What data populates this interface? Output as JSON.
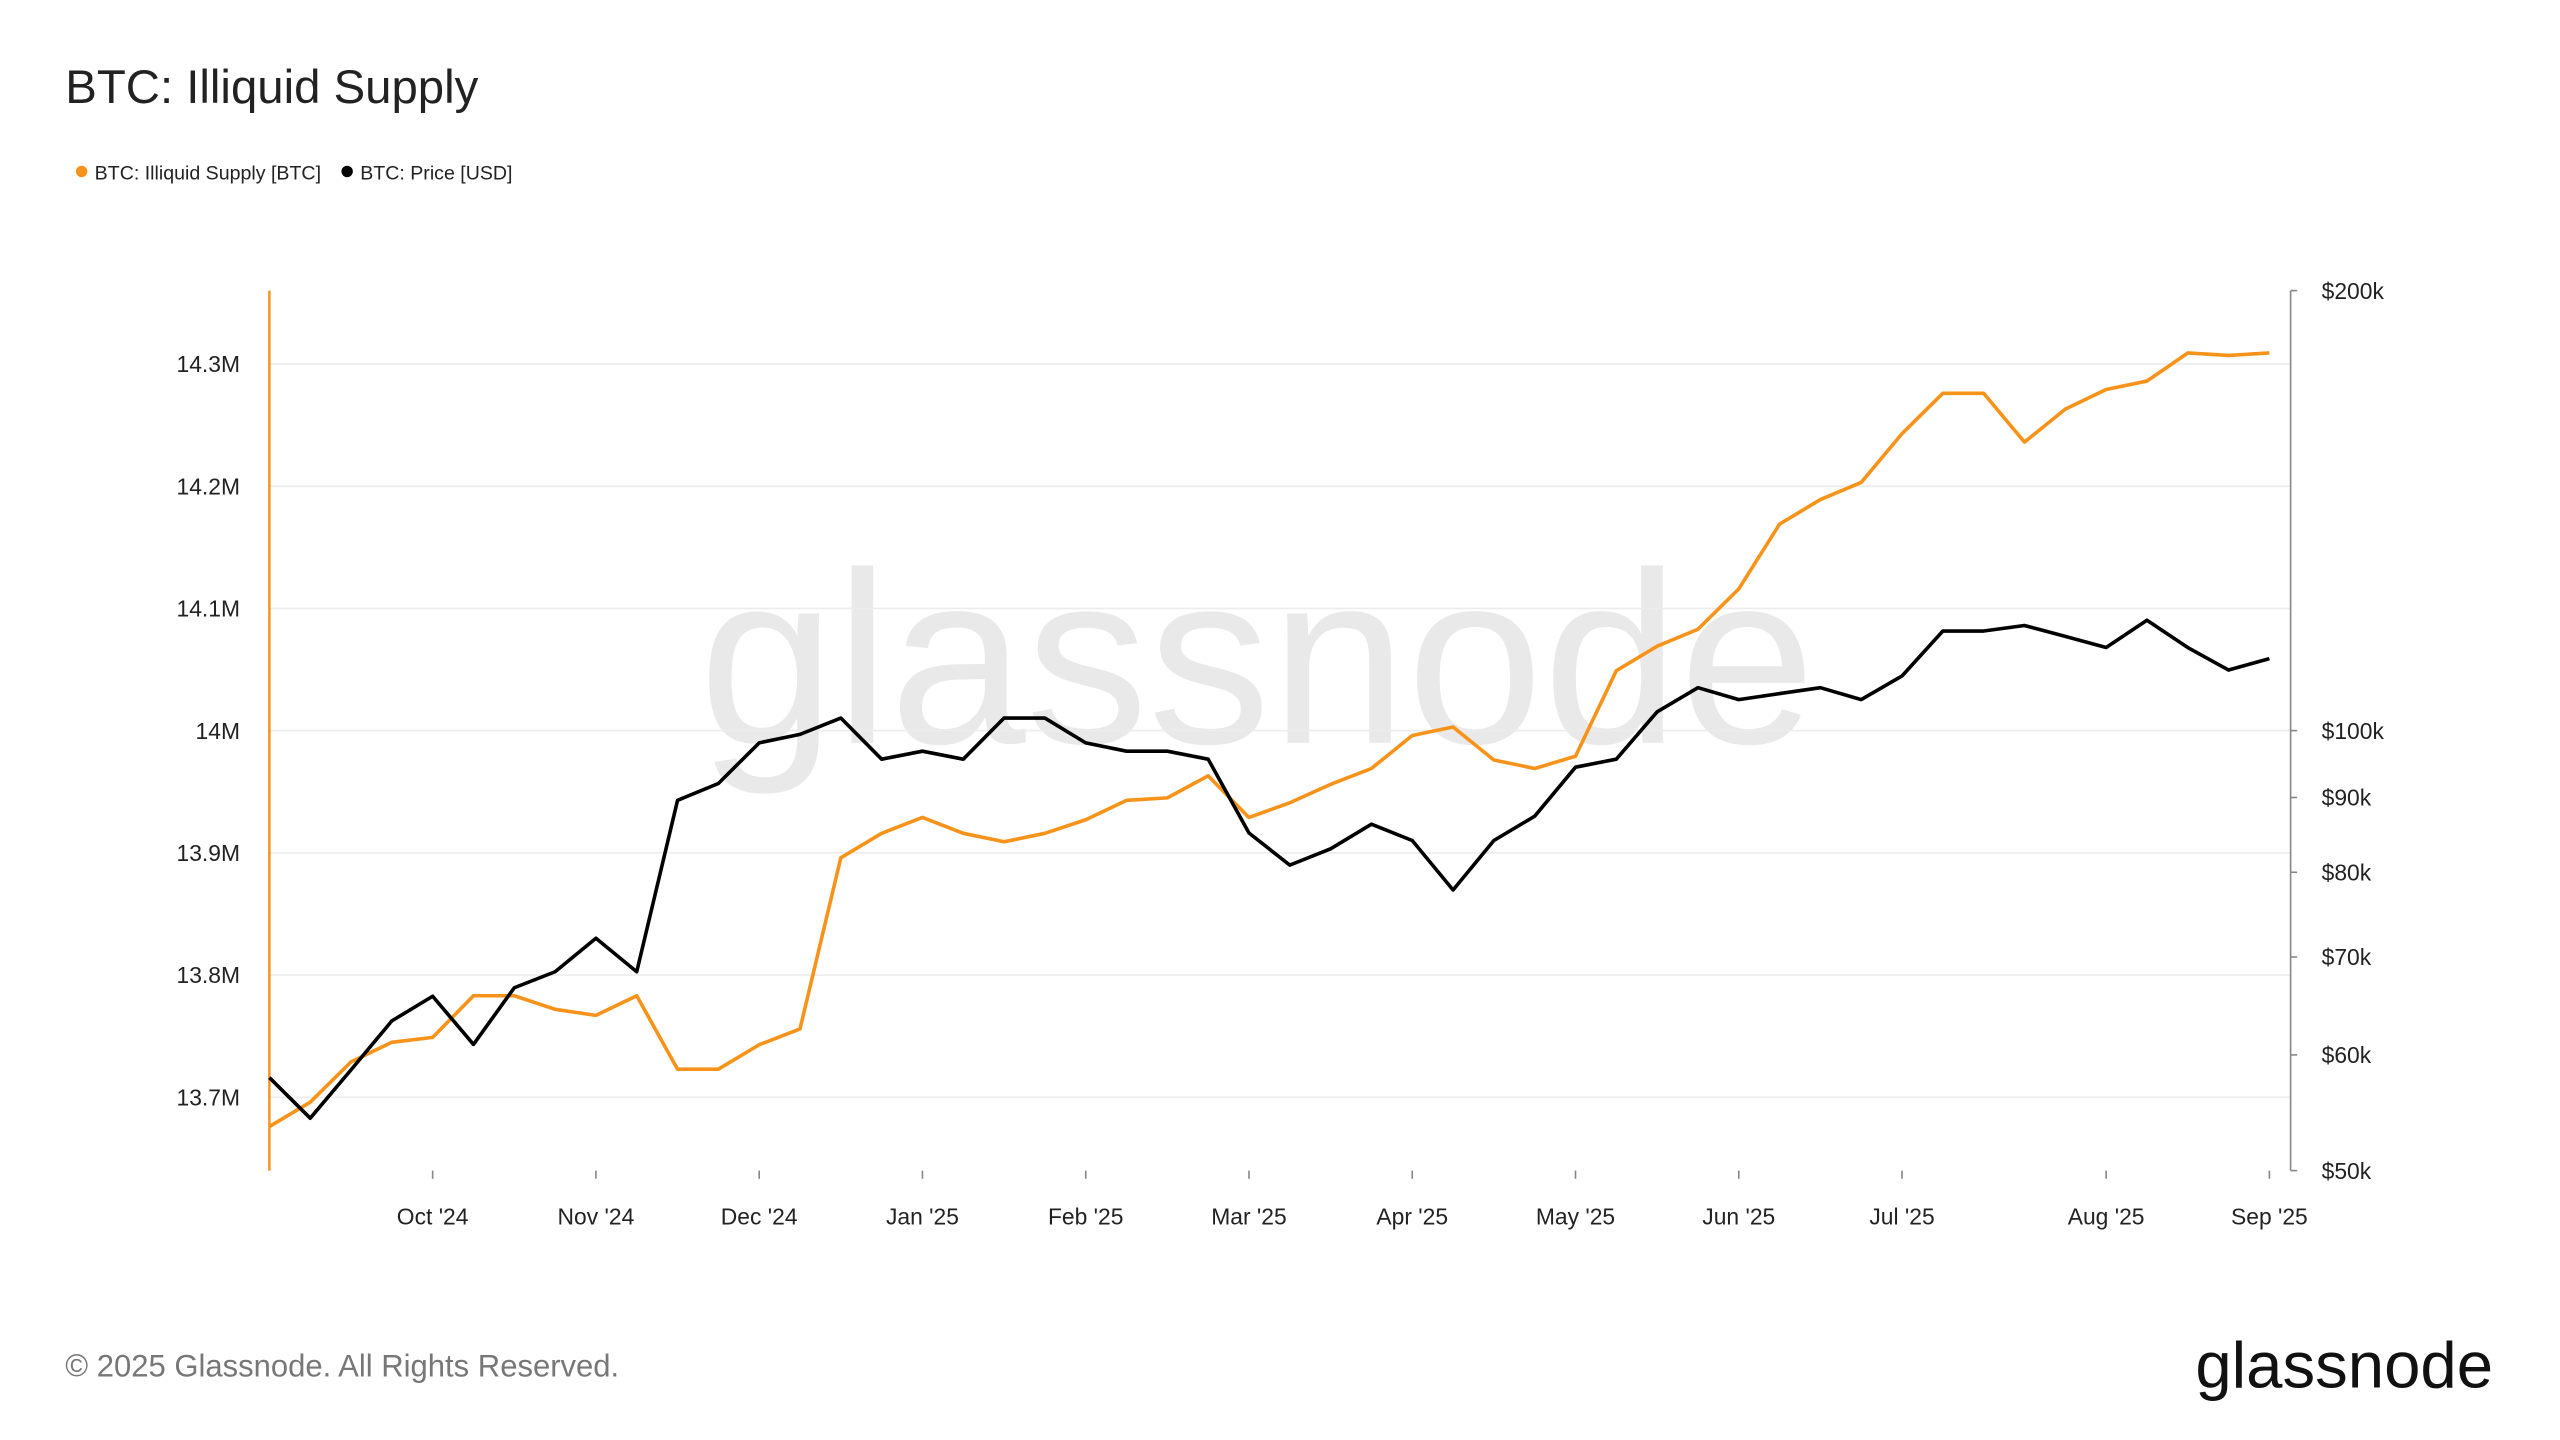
{
  "chart_data": {
    "type": "line",
    "title": "BTC: Illiquid Supply",
    "watermark": "glassnode",
    "footer": "© 2025 Glassnode. All Rights Reserved.",
    "logo": "glassnode",
    "categories": [
      null,
      null,
      null,
      null,
      "Oct '24",
      null,
      null,
      null,
      "Nov '24",
      null,
      null,
      null,
      "Dec '24",
      null,
      null,
      null,
      "Jan '25",
      null,
      null,
      null,
      "Feb '25",
      null,
      null,
      null,
      "Mar '25",
      null,
      null,
      null,
      "Apr '25",
      null,
      null,
      null,
      "May '25",
      null,
      null,
      null,
      "Jun '25",
      null,
      null,
      null,
      "Jul '25",
      null,
      null,
      null,
      null,
      "Aug '25",
      null,
      null,
      null,
      "Sep '25"
    ],
    "series": [
      {
        "name": "BTC: Illiquid Supply [BTC]",
        "color": "#f7931a",
        "axis": "y",
        "values": [
          13676000,
          13696000,
          13729000,
          13745000,
          13749000,
          13783000,
          13783000,
          13772000,
          13767000,
          13783000,
          13723000,
          13723000,
          13743000,
          13756000,
          13896000,
          13916000,
          13929000,
          13916000,
          13909000,
          13916000,
          13927000,
          13943000,
          13945000,
          13963000,
          13929000,
          13941000,
          13956000,
          13969000,
          13996000,
          14003000,
          13976000,
          13969000,
          13979000,
          14049000,
          14069000,
          14083000,
          14116000,
          14169000,
          14189000,
          14203000,
          14243000,
          14276000,
          14276000,
          14236000,
          14263000,
          14279000,
          14286000,
          14309000,
          14307000,
          14309000
        ]
      },
      {
        "name": "BTC: Price [USD]",
        "color": "#000000",
        "axis": "y2",
        "values": [
          57900,
          54300,
          58600,
          63300,
          65800,
          61000,
          66700,
          68400,
          72100,
          68400,
          89600,
          92000,
          98100,
          99400,
          102000,
          95600,
          96800,
          95600,
          102000,
          102000,
          98100,
          96800,
          96800,
          95600,
          85100,
          80900,
          83000,
          86300,
          84100,
          77800,
          84100,
          87400,
          94400,
          95600,
          103000,
          107000,
          105000,
          106000,
          107000,
          105000,
          109000,
          117000,
          117000,
          118000,
          116000,
          114000,
          119000,
          114000,
          110000,
          112000
        ]
      }
    ],
    "ylim": [
      13640000,
      14360000
    ],
    "yticks": [
      {
        "value": 13700000,
        "label": "13.7M"
      },
      {
        "value": 13800000,
        "label": "13.8M"
      },
      {
        "value": 13900000,
        "label": "13.9M"
      },
      {
        "value": 14000000,
        "label": "14M"
      },
      {
        "value": 14100000,
        "label": "14.1M"
      },
      {
        "value": 14200000,
        "label": "14.2M"
      },
      {
        "value": 14300000,
        "label": "14.3M"
      }
    ],
    "y2lim": [
      50000,
      200000
    ],
    "y2scale": "log",
    "y2ticks": [
      {
        "value": 50000,
        "label": "$50k"
      },
      {
        "value": 60000,
        "label": "$60k"
      },
      {
        "value": 70000,
        "label": "$70k"
      },
      {
        "value": 80000,
        "label": "$80k"
      },
      {
        "value": 90000,
        "label": "$90k"
      },
      {
        "value": 100000,
        "label": "$100k"
      },
      {
        "value": 200000,
        "label": "$200k"
      }
    ],
    "grid": true,
    "legend": "top-left"
  }
}
